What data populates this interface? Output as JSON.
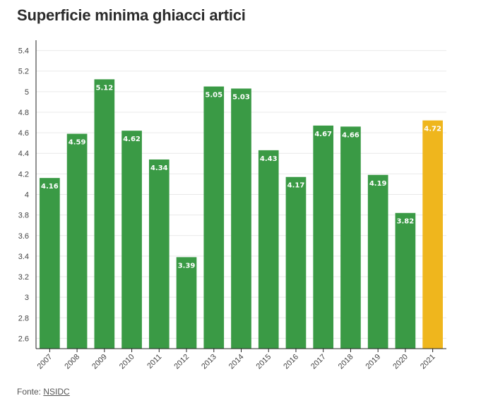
{
  "title": "Superficie minima ghiacci artici",
  "footer": {
    "label": "Fonte:",
    "source": "NSIDC"
  },
  "colors": {
    "bar": "#3a9a45",
    "highlight": "#efb61d",
    "grid": "#e9e9e9",
    "axis": "#222222"
  },
  "chart_data": {
    "type": "bar",
    "title": "Superficie minima ghiacci artici",
    "xlabel": "",
    "ylabel": "",
    "categories": [
      "2007",
      "2008",
      "2009",
      "2010",
      "2011",
      "2012",
      "2013",
      "2014",
      "2015",
      "2016",
      "2017",
      "2018",
      "2019",
      "2020",
      "2021"
    ],
    "values": [
      4.16,
      4.59,
      5.12,
      4.62,
      4.34,
      3.39,
      5.05,
      5.03,
      4.43,
      4.17,
      4.67,
      4.66,
      4.19,
      3.82,
      4.72
    ],
    "value_labels": [
      "4.16",
      "4.59",
      "5.12",
      "4.62",
      "4.34",
      "3.39",
      "5.05",
      "5.03",
      "4.43",
      "4.17",
      "4.67",
      "4.66",
      "4.19",
      "3.82",
      "4.72"
    ],
    "highlight": "2021",
    "ylim": [
      2.5,
      5.5
    ],
    "yticks": [
      2.6,
      2.8,
      3,
      3.2,
      3.4,
      3.6,
      3.8,
      4,
      4.2,
      4.4,
      4.6,
      4.8,
      5,
      5.2,
      5.4
    ],
    "ytick_labels": [
      "2.6",
      "2.8",
      "3",
      "3.2",
      "3.4",
      "3.6",
      "3.8",
      "4",
      "4.2",
      "4.4",
      "4.6",
      "4.8",
      "5",
      "5.2",
      "5.4"
    ],
    "grid": true,
    "legend": false
  }
}
